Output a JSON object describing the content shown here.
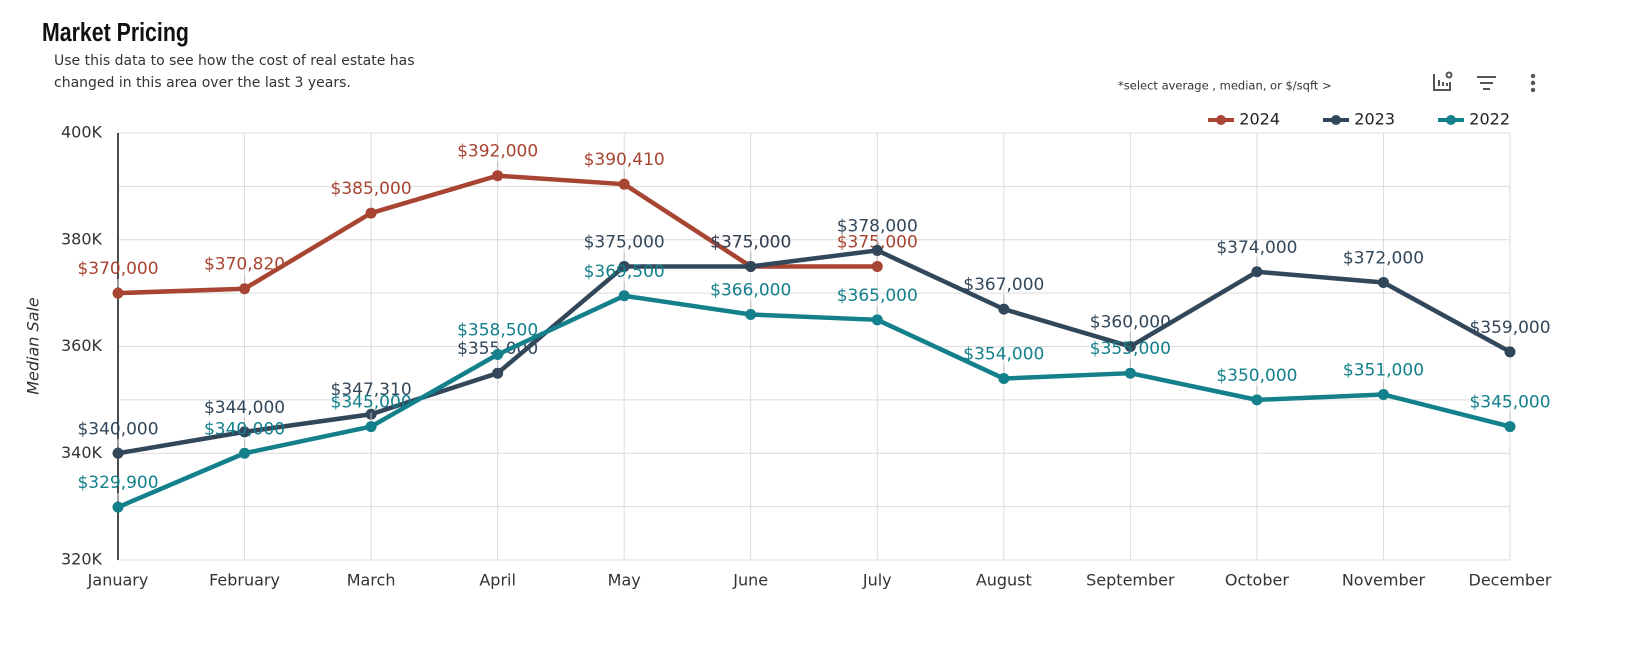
{
  "chart_data": {
    "type": "line",
    "title": "Market Pricing",
    "subtitle": [
      "Use this data to see how the cost of real estate has",
      "changed in this area over the last 3 years."
    ],
    "hint": "*select average , median, or $/sqft  >",
    "y_label": "Median Sale",
    "categories": [
      "January",
      "February",
      "March",
      "April",
      "May",
      "June",
      "July",
      "August",
      "September",
      "October",
      "November",
      "December"
    ],
    "ylim": [
      320000,
      400000
    ],
    "yticks": [
      {
        "value": 320000,
        "label": "320K"
      },
      {
        "value": 340000,
        "label": "340K"
      },
      {
        "value": 360000,
        "label": "360K"
      },
      {
        "value": 380000,
        "label": "380K"
      },
      {
        "value": 400000,
        "label": "400K"
      }
    ],
    "minor_grid": [
      330000,
      350000,
      370000,
      390000
    ],
    "grid": true,
    "legend": "top-right",
    "series": [
      {
        "name": "2024",
        "color": "#a84432",
        "values": [
          370000,
          370820,
          385000,
          392000,
          390410,
          375000,
          375000,
          null,
          null,
          null,
          null,
          null
        ],
        "value_labels": [
          "$370,000",
          "$370,820",
          "$385,000",
          "$392,000",
          "$390,410",
          "$375,000",
          "$375,000",
          null,
          null,
          null,
          null,
          null
        ]
      },
      {
        "name": "2023",
        "color": "#33475b",
        "values": [
          340000,
          344000,
          347310,
          355000,
          375000,
          375000,
          378000,
          367000,
          360000,
          374000,
          372000,
          359000
        ],
        "value_labels": [
          "$340,000",
          "$344,000",
          "$347,310",
          "$355,000",
          "$375,000",
          "$375,000",
          "$378,000",
          "$367,000",
          "$360,000",
          "$374,000",
          "$372,000",
          "$359,000"
        ]
      },
      {
        "name": "2022",
        "color": "#13808b",
        "values": [
          329900,
          340000,
          345000,
          358500,
          369500,
          366000,
          365000,
          354000,
          355000,
          350000,
          351000,
          345000
        ],
        "value_labels": [
          "$329,900",
          "$340,000",
          "$345,000",
          "$358,500",
          "$369,500",
          "$366,000",
          "$365,000",
          "$354,000",
          "$355,000",
          "$350,000",
          "$351,000",
          "$345,000"
        ]
      }
    ]
  }
}
